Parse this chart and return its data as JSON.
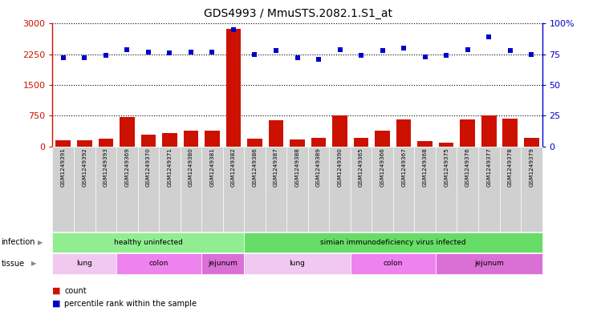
{
  "title": "GDS4993 / MmuSTS.2082.1.S1_at",
  "samples": [
    "GSM1249391",
    "GSM1249392",
    "GSM1249393",
    "GSM1249369",
    "GSM1249370",
    "GSM1249371",
    "GSM1249380",
    "GSM1249381",
    "GSM1249382",
    "GSM1249386",
    "GSM1249387",
    "GSM1249388",
    "GSM1249389",
    "GSM1249390",
    "GSM1249365",
    "GSM1249366",
    "GSM1249367",
    "GSM1249368",
    "GSM1249375",
    "GSM1249376",
    "GSM1249377",
    "GSM1249378",
    "GSM1249379"
  ],
  "counts": [
    150,
    155,
    200,
    710,
    290,
    330,
    390,
    390,
    2880,
    200,
    640,
    170,
    220,
    760,
    210,
    390,
    660,
    140,
    100,
    660,
    750,
    680,
    210
  ],
  "percentile_ranks": [
    72,
    72,
    74,
    79,
    77,
    76,
    77,
    77,
    95,
    75,
    78,
    72,
    71,
    79,
    74,
    78,
    80,
    73,
    74,
    79,
    89,
    78,
    75
  ],
  "bar_color": "#cc1100",
  "dot_color": "#0000cc",
  "left_yticks": [
    0,
    750,
    1500,
    2250,
    3000
  ],
  "right_yticks": [
    0,
    25,
    50,
    75,
    100
  ],
  "left_ylim": [
    0,
    3000
  ],
  "right_ylim": [
    0,
    100
  ],
  "infection_groups": [
    {
      "label": "healthy uninfected",
      "start": 0,
      "end": 8,
      "color": "#90ee90"
    },
    {
      "label": "simian immunodeficiency virus infected",
      "start": 9,
      "end": 22,
      "color": "#66dd66"
    }
  ],
  "tissue_groups": [
    {
      "label": "lung",
      "start": 0,
      "end": 2,
      "color": "#f0c8f0"
    },
    {
      "label": "colon",
      "start": 3,
      "end": 6,
      "color": "#ee82ee"
    },
    {
      "label": "jejunum",
      "start": 7,
      "end": 8,
      "color": "#da70d6"
    },
    {
      "label": "lung",
      "start": 9,
      "end": 13,
      "color": "#f0c8f0"
    },
    {
      "label": "colon",
      "start": 14,
      "end": 17,
      "color": "#ee82ee"
    },
    {
      "label": "jejunum",
      "start": 18,
      "end": 22,
      "color": "#da70d6"
    }
  ],
  "col_bg_color": "#d0d0d0",
  "col_border_color": "#ffffff",
  "legend_count_color": "#cc1100",
  "legend_pct_color": "#0000cc"
}
